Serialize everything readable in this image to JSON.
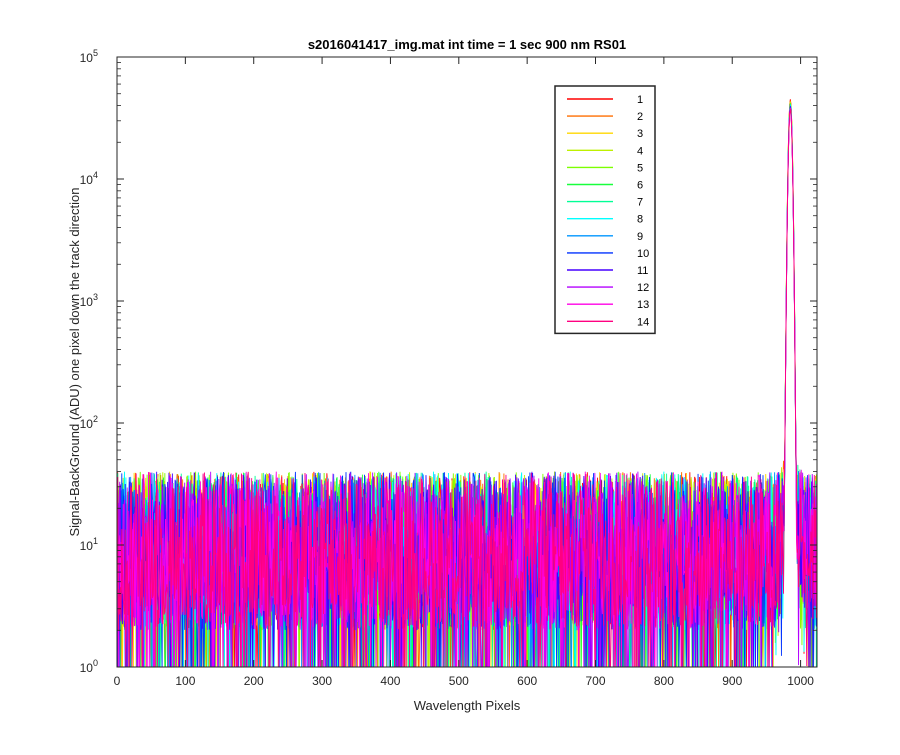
{
  "chart_data": {
    "type": "line",
    "title": "s2016041417_img.mat int time = 1 sec  900 nm RS01",
    "xlabel": "Wavelength Pixels",
    "ylabel": "Signal-BackGround (ADU) one pixel down the track direction",
    "xlim": [
      0,
      1024
    ],
    "ylim": [
      1,
      100000
    ],
    "yscale": "log",
    "x_ticks": [
      0,
      100,
      200,
      300,
      400,
      500,
      600,
      700,
      800,
      900,
      1000
    ],
    "x_tick_labels": [
      "0",
      "100",
      "200",
      "300",
      "400",
      "500",
      "600",
      "700",
      "800",
      "900",
      "1000"
    ],
    "y_ticks": [
      1,
      10,
      100,
      1000,
      10000,
      100000
    ],
    "y_tick_labels": [
      {
        "base": "10",
        "exp": "0"
      },
      {
        "base": "10",
        "exp": "1"
      },
      {
        "base": "10",
        "exp": "2"
      },
      {
        "base": "10",
        "exp": "3"
      },
      {
        "base": "10",
        "exp": "4"
      },
      {
        "base": "10",
        "exp": "5"
      }
    ],
    "grid": false,
    "legend_position": "top-right",
    "noise_floor_description_values": {
      "baseline_range": [
        1,
        40
      ],
      "typical_level": 10
    },
    "peak": {
      "x": 985,
      "y": 45000
    },
    "series": [
      {
        "name": "1",
        "color": "#FF0000",
        "peak": 45000
      },
      {
        "name": "2",
        "color": "#FF6E00",
        "peak": 44000
      },
      {
        "name": "3",
        "color": "#FFD700",
        "peak": 43000
      },
      {
        "name": "4",
        "color": "#BEF000",
        "peak": 42500
      },
      {
        "name": "5",
        "color": "#7DFF00",
        "peak": 42000
      },
      {
        "name": "6",
        "color": "#19FF3C",
        "peak": 41500
      },
      {
        "name": "7",
        "color": "#00FF96",
        "peak": 41000
      },
      {
        "name": "8",
        "color": "#00FFFF",
        "peak": 40500
      },
      {
        "name": "9",
        "color": "#0096FF",
        "peak": 40000
      },
      {
        "name": "10",
        "color": "#0032FF",
        "peak": 39500
      },
      {
        "name": "11",
        "color": "#4600FF",
        "peak": 39000
      },
      {
        "name": "12",
        "color": "#B400FF",
        "peak": 38500
      },
      {
        "name": "13",
        "color": "#FF00E6",
        "peak": 38000
      },
      {
        "name": "14",
        "color": "#FF0080",
        "peak": 37500
      }
    ]
  }
}
